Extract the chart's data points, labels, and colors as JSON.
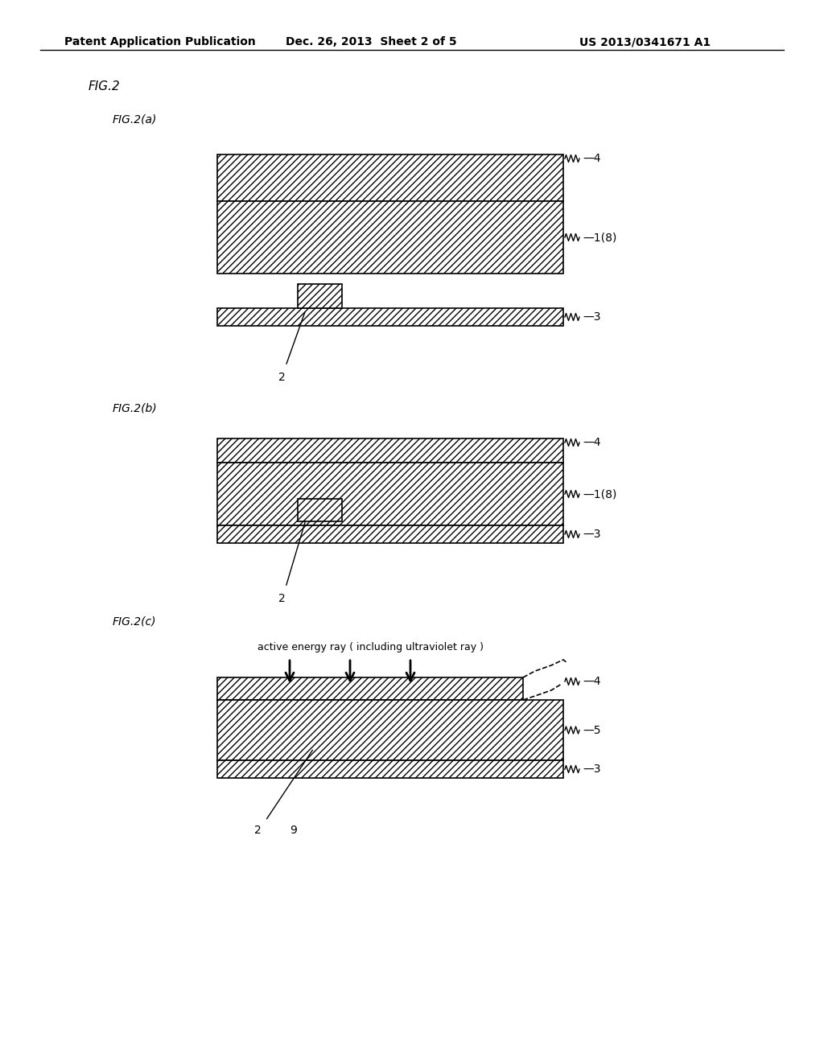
{
  "title_line1": "Patent Application Publication",
  "title_line2": "Dec. 26, 2013  Sheet 2 of 5",
  "title_line3": "US 2013/0341671 A1",
  "fig_label": "FIG.2",
  "fig_a_label": "FIG.2(a)",
  "fig_b_label": "FIG.2(b)",
  "fig_c_label": "FIG.2(c)",
  "background_color": "#ffffff",
  "line_color": "#000000",
  "hatch_color": "#000000",
  "hatch_fill": "////",
  "label_4": "4",
  "label_1_8": "1(8)",
  "label_3": "3",
  "label_2": "2",
  "label_5": "5",
  "label_9": "9",
  "uv_label": "active energy ray ( including ultraviolet ray )"
}
